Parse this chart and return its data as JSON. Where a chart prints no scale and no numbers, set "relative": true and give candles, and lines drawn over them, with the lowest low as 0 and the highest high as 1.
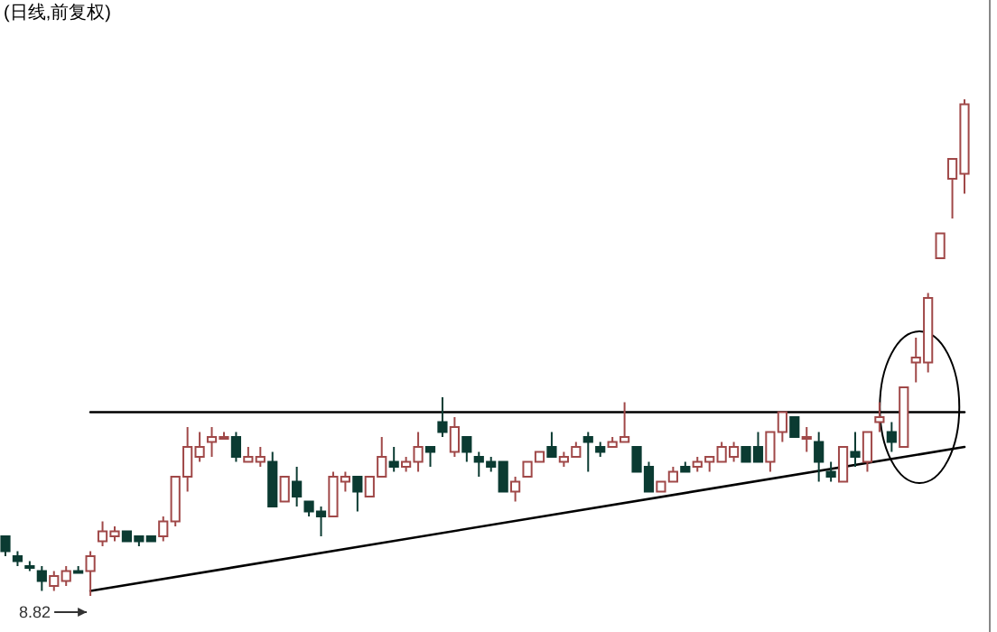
{
  "chart_data": {
    "type": "candlestick",
    "title": "(日线,前复权)",
    "relative": true,
    "categories": [
      null,
      null,
      null,
      null,
      null,
      null,
      null,
      null,
      null,
      null,
      null,
      null,
      null,
      null,
      null,
      null,
      null,
      null,
      null,
      null,
      null,
      null,
      null,
      null,
      null,
      null,
      null,
      null,
      null,
      null,
      null,
      null,
      null,
      null,
      null,
      null,
      null,
      null,
      null,
      null,
      null,
      null,
      null,
      null,
      null,
      null,
      null,
      null,
      null,
      null,
      null,
      null,
      null,
      null,
      null,
      null,
      null,
      null,
      null,
      null,
      null,
      null,
      null,
      null,
      null,
      null,
      null,
      null,
      null,
      null,
      null,
      null,
      null,
      null,
      null,
      null,
      null,
      null,
      null,
      null
    ],
    "ohlc": [
      [
        0.12,
        0.12,
        0.08,
        0.09
      ],
      [
        0.08,
        0.09,
        0.06,
        0.07
      ],
      [
        0.06,
        0.07,
        0.05,
        0.06
      ],
      [
        0.05,
        0.06,
        0.01,
        0.03
      ],
      [
        0.02,
        0.05,
        0.01,
        0.04
      ],
      [
        0.03,
        0.06,
        0.02,
        0.05
      ],
      [
        0.05,
        0.06,
        0.05,
        0.05
      ],
      [
        0.05,
        0.09,
        0,
        0.08
      ],
      [
        0.11,
        0.15,
        0.1,
        0.13
      ],
      [
        0.12,
        0.14,
        0.11,
        0.13
      ],
      [
        0.13,
        0.13,
        0.11,
        0.11
      ],
      [
        0.12,
        0.12,
        0.1,
        0.11
      ],
      [
        0.12,
        0.12,
        0.11,
        0.11
      ],
      [
        0.12,
        0.16,
        0.11,
        0.15
      ],
      [
        0.15,
        0.24,
        0.14,
        0.24
      ],
      [
        0.24,
        0.34,
        0.21,
        0.3
      ],
      [
        0.28,
        0.33,
        0.27,
        0.3
      ],
      [
        0.31,
        0.34,
        0.28,
        0.32
      ],
      [
        0.32,
        0.33,
        0.32,
        0.32
      ],
      [
        0.32,
        0.33,
        0.27,
        0.28
      ],
      [
        0.27,
        0.3,
        0.27,
        0.28
      ],
      [
        0.27,
        0.3,
        0.26,
        0.28
      ],
      [
        0.27,
        0.29,
        0.18,
        0.18
      ],
      [
        0.19,
        0.24,
        0.19,
        0.24
      ],
      [
        0.23,
        0.26,
        0.18,
        0.2
      ],
      [
        0.19,
        0.19,
        0.16,
        0.17
      ],
      [
        0.17,
        0.18,
        0.12,
        0.16
      ],
      [
        0.16,
        0.25,
        0.16,
        0.24
      ],
      [
        0.23,
        0.25,
        0.21,
        0.24
      ],
      [
        0.24,
        0.24,
        0.17,
        0.21
      ],
      [
        0.2,
        0.24,
        0.2,
        0.24
      ],
      [
        0.24,
        0.32,
        0.24,
        0.28
      ],
      [
        0.27,
        0.3,
        0.25,
        0.26
      ],
      [
        0.26,
        0.28,
        0.25,
        0.27
      ],
      [
        0.27,
        0.33,
        0.25,
        0.3
      ],
      [
        0.3,
        0.3,
        0.26,
        0.29
      ],
      [
        0.35,
        0.4,
        0.32,
        0.33
      ],
      [
        0.29,
        0.36,
        0.28,
        0.34
      ],
      [
        0.32,
        0.32,
        0.27,
        0.29
      ],
      [
        0.28,
        0.29,
        0.24,
        0.27
      ],
      [
        0.27,
        0.28,
        0.25,
        0.26
      ],
      [
        0.27,
        0.27,
        0.21,
        0.21
      ],
      [
        0.21,
        0.24,
        0.19,
        0.23
      ],
      [
        0.24,
        0.27,
        0.24,
        0.27
      ],
      [
        0.27,
        0.29,
        0.27,
        0.29
      ],
      [
        0.3,
        0.33,
        0.28,
        0.28
      ],
      [
        0.27,
        0.29,
        0.26,
        0.28
      ],
      [
        0.28,
        0.31,
        0.28,
        0.3
      ],
      [
        0.32,
        0.33,
        0.25,
        0.31
      ],
      [
        0.3,
        0.31,
        0.28,
        0.29
      ],
      [
        0.3,
        0.32,
        0.3,
        0.31
      ],
      [
        0.31,
        0.39,
        0.31,
        0.32
      ],
      [
        0.3,
        0.3,
        0.25,
        0.25
      ],
      [
        0.26,
        0.27,
        0.21,
        0.21
      ],
      [
        0.21,
        0.23,
        0.21,
        0.23
      ],
      [
        0.23,
        0.26,
        0.23,
        0.25
      ],
      [
        0.26,
        0.27,
        0.25,
        0.25
      ],
      [
        0.26,
        0.28,
        0.25,
        0.27
      ],
      [
        0.27,
        0.28,
        0.25,
        0.28
      ],
      [
        0.27,
        0.31,
        0.27,
        0.3
      ],
      [
        0.28,
        0.31,
        0.27,
        0.3
      ],
      [
        0.3,
        0.3,
        0.27,
        0.27
      ],
      [
        0.3,
        0.33,
        0.27,
        0.27
      ],
      [
        0.27,
        0.33,
        0.25,
        0.33
      ],
      [
        0.33,
        0.37,
        0.31,
        0.37
      ],
      [
        0.36,
        0.36,
        0.32,
        0.32
      ],
      [
        0.32,
        0.34,
        0.29,
        0.32
      ],
      [
        0.31,
        0.33,
        0.23,
        0.27
      ],
      [
        0.25,
        0.27,
        0.23,
        0.24
      ],
      [
        0.23,
        0.3,
        0.23,
        0.3
      ],
      [
        0.29,
        0.33,
        0.26,
        0.28
      ],
      [
        0.27,
        0.33,
        0.25,
        0.33
      ],
      [
        0.35,
        0.39,
        0.33,
        0.36
      ],
      [
        0.33,
        0.35,
        0.29,
        0.31
      ],
      [
        0.3,
        0.42,
        0.3,
        0.42
      ],
      [
        0.47,
        0.52,
        0.43,
        0.48
      ],
      [
        0.47,
        0.61,
        0.45,
        0.6
      ],
      [
        0.68,
        0.73,
        0.68,
        0.73
      ],
      [
        0.84,
        0.88,
        0.76,
        0.88
      ],
      [
        0.85,
        1.0,
        0.81,
        0.99
      ]
    ],
    "colors": [
      "#0b3b32",
      "#0b3b32",
      "#0b3b32",
      "#0b3b32",
      "#a04848",
      "#a04848",
      "#0b3b32",
      "#a04848",
      "#a04848",
      "#a04848",
      "#0b3b32",
      "#0b3b32",
      "#0b3b32",
      "#a04848",
      "#a04848",
      "#a04848",
      "#a04848",
      "#a04848",
      "#a04848",
      "#0b3b32",
      "#a04848",
      "#a04848",
      "#0b3b32",
      "#a04848",
      "#0b3b32",
      "#0b3b32",
      "#0b3b32",
      "#a04848",
      "#a04848",
      "#0b3b32",
      "#a04848",
      "#a04848",
      "#0b3b32",
      "#a04848",
      "#a04848",
      "#0b3b32",
      "#0b3b32",
      "#a04848",
      "#0b3b32",
      "#0b3b32",
      "#0b3b32",
      "#0b3b32",
      "#a04848",
      "#a04848",
      "#a04848",
      "#0b3b32",
      "#a04848",
      "#a04848",
      "#0b3b32",
      "#0b3b32",
      "#a04848",
      "#a04848",
      "#0b3b32",
      "#0b3b32",
      "#a04848",
      "#a04848",
      "#0b3b32",
      "#a04848",
      "#a04848",
      "#a04848",
      "#a04848",
      "#0b3b32",
      "#0b3b32",
      "#a04848",
      "#a04848",
      "#0b3b32",
      "#a04848",
      "#0b3b32",
      "#0b3b32",
      "#a04848",
      "#0b3b32",
      "#a04848",
      "#a04848",
      "#0b3b32",
      "#a04848",
      "#a04848",
      "#a04848",
      "#a04848",
      "#a04848",
      "#a04848"
    ],
    "series": [
      {
        "type": "line",
        "color": "#000000",
        "values": [
          null,
          null,
          null,
          null,
          null,
          null,
          null,
          0.37,
          null,
          null,
          null,
          null,
          null,
          null,
          null,
          null,
          null,
          null,
          null,
          null,
          null,
          null,
          null,
          null,
          null,
          null,
          null,
          null,
          null,
          null,
          null,
          null,
          null,
          null,
          null,
          null,
          null,
          null,
          null,
          null,
          null,
          null,
          null,
          null,
          null,
          null,
          null,
          null,
          null,
          null,
          null,
          null,
          null,
          null,
          null,
          null,
          null,
          null,
          null,
          null,
          null,
          null,
          null,
          null,
          null,
          null,
          null,
          null,
          null,
          null,
          null,
          null,
          null,
          null,
          null,
          null,
          null,
          null,
          null,
          0.37
        ]
      },
      {
        "type": "line",
        "color": "#000000",
        "values": [
          null,
          null,
          null,
          null,
          null,
          null,
          null,
          0.01,
          null,
          null,
          null,
          null,
          null,
          null,
          null,
          null,
          null,
          null,
          null,
          null,
          null,
          null,
          null,
          null,
          null,
          null,
          null,
          null,
          null,
          null,
          null,
          null,
          null,
          null,
          null,
          null,
          null,
          null,
          null,
          null,
          null,
          null,
          null,
          null,
          null,
          null,
          null,
          null,
          null,
          null,
          null,
          null,
          null,
          null,
          null,
          null,
          null,
          null,
          null,
          null,
          null,
          null,
          null,
          null,
          null,
          null,
          null,
          null,
          null,
          null,
          null,
          null,
          null,
          null,
          null,
          null,
          null,
          null,
          null,
          0.3
        ]
      }
    ],
    "annotations": [
      {
        "text": "8.82",
        "y": 0
      }
    ]
  }
}
